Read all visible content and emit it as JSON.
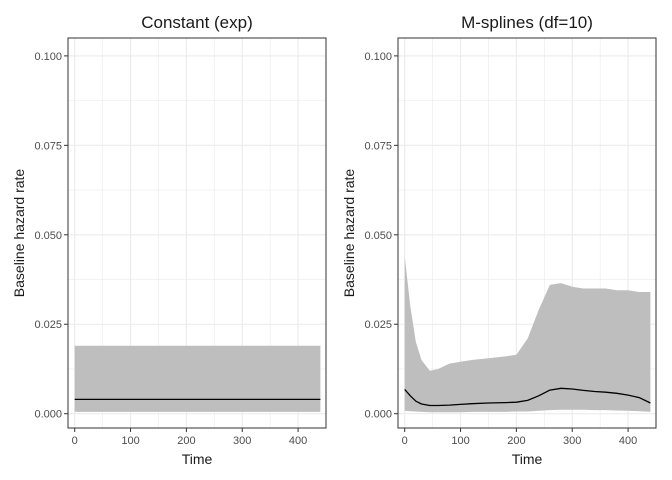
{
  "chart_data": [
    {
      "type": "line",
      "title": "Constant (exp)",
      "xlabel": "Time",
      "ylabel": "Baseline hazard rate",
      "xlim": [
        -12,
        450
      ],
      "ylim": [
        -0.004,
        0.105
      ],
      "x_ticks": [
        0,
        100,
        200,
        300,
        400
      ],
      "x_tick_labels": [
        "0",
        "100",
        "200",
        "300",
        "400"
      ],
      "y_ticks": [
        0.0,
        0.025,
        0.05,
        0.075,
        0.1
      ],
      "y_tick_labels": [
        "0.000",
        "0.025",
        "0.050",
        "0.075",
        "0.100"
      ],
      "grid": true,
      "legend": "none",
      "colors": {
        "band": "#bebebe",
        "line": "#000000",
        "grid": "#ebebeb",
        "border": "#333333"
      },
      "series": [
        {
          "x": [
            0,
            440
          ],
          "values": [
            0.004,
            0.004
          ],
          "lower": [
            0.0005,
            0.0005
          ],
          "upper": [
            0.019,
            0.019
          ]
        }
      ]
    },
    {
      "type": "line",
      "title": "M-splines  (df=10)",
      "xlabel": "Time",
      "ylabel": "Baseline hazard rate",
      "xlim": [
        -12,
        450
      ],
      "ylim": [
        -0.004,
        0.105
      ],
      "x_ticks": [
        0,
        100,
        200,
        300,
        400
      ],
      "x_tick_labels": [
        "0",
        "100",
        "200",
        "300",
        "400"
      ],
      "y_ticks": [
        0.0,
        0.025,
        0.05,
        0.075,
        0.1
      ],
      "y_tick_labels": [
        "0.000",
        "0.025",
        "0.050",
        "0.075",
        "0.100"
      ],
      "grid": true,
      "legend": "none",
      "colors": {
        "band": "#bebebe",
        "line": "#000000",
        "grid": "#ebebeb",
        "border": "#333333"
      },
      "series": [
        {
          "x": [
            0,
            10,
            20,
            30,
            45,
            60,
            80,
            100,
            120,
            150,
            180,
            200,
            220,
            240,
            260,
            280,
            300,
            320,
            340,
            360,
            380,
            400,
            420,
            440
          ],
          "values": [
            0.0068,
            0.005,
            0.0035,
            0.0027,
            0.0023,
            0.0023,
            0.0024,
            0.0026,
            0.0028,
            0.003,
            0.0031,
            0.0032,
            0.0037,
            0.005,
            0.0066,
            0.0071,
            0.0069,
            0.0065,
            0.0062,
            0.006,
            0.0057,
            0.0052,
            0.0045,
            0.003
          ],
          "lower": [
            0.0008,
            0.0007,
            0.0006,
            0.0005,
            0.0004,
            0.0004,
            0.0004,
            0.0004,
            0.0005,
            0.0005,
            0.0005,
            0.0006,
            0.0006,
            0.0008,
            0.001,
            0.0011,
            0.0011,
            0.0011,
            0.001,
            0.001,
            0.0009,
            0.0008,
            0.0007,
            0.0005
          ],
          "upper": [
            0.044,
            0.03,
            0.02,
            0.015,
            0.012,
            0.0125,
            0.014,
            0.0145,
            0.015,
            0.0155,
            0.016,
            0.0165,
            0.021,
            0.029,
            0.036,
            0.0365,
            0.0355,
            0.035,
            0.035,
            0.035,
            0.0345,
            0.0345,
            0.034,
            0.034
          ]
        }
      ]
    }
  ]
}
